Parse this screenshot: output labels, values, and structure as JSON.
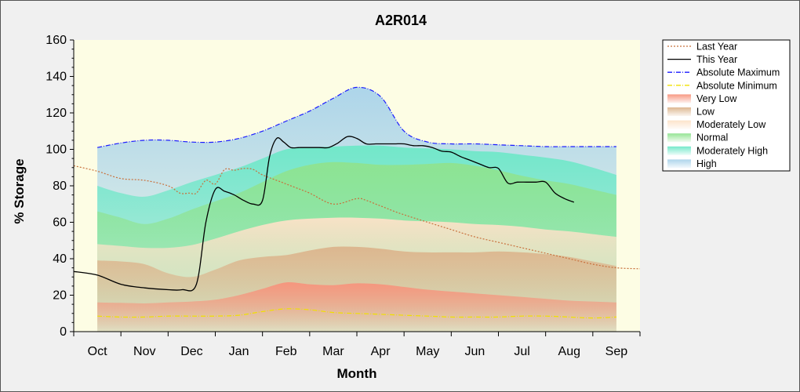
{
  "chart_data": {
    "type": "area",
    "title": "A2R014",
    "xlabel": "Month",
    "ylabel": "% Storage",
    "ylim": [
      0,
      160
    ],
    "yticks": [
      0,
      20,
      40,
      60,
      80,
      100,
      120,
      140,
      160
    ],
    "xlim": [
      0,
      12
    ],
    "categories": [
      "Oct",
      "Nov",
      "Dec",
      "Jan",
      "Feb",
      "Mar",
      "Apr",
      "May",
      "Jun",
      "Jul",
      "Aug",
      "Sep"
    ],
    "grid": false,
    "legend_position": "right",
    "bands_x": [
      0.5,
      1,
      1.5,
      2,
      2.5,
      3,
      3.5,
      4,
      4.5,
      5,
      5.5,
      6,
      6.5,
      7,
      7.5,
      8,
      8.5,
      9,
      9.5,
      10,
      10.5,
      11,
      11.5
    ],
    "bands": [
      {
        "name": "Very Low",
        "color": "#f7937c",
        "top": [
          16,
          15.8,
          15.5,
          16,
          16.5,
          17.5,
          20,
          23.5,
          27,
          26,
          25.5,
          26.5,
          26,
          24.5,
          23,
          22,
          21,
          20,
          19,
          18,
          17,
          16.5,
          16
        ]
      },
      {
        "name": "Low",
        "color": "#dcb48c",
        "top": [
          39,
          38.5,
          37,
          32,
          30,
          34,
          39,
          41,
          42,
          44.5,
          46.5,
          46.5,
          45.5,
          44,
          43.5,
          43.5,
          43.5,
          44,
          43.5,
          42.5,
          41,
          38.5,
          36
        ]
      },
      {
        "name": "Moderately Low",
        "color": "#fde2c8",
        "top": [
          48,
          47,
          46,
          46,
          47.5,
          51,
          55,
          58.5,
          61,
          62,
          62.5,
          62.5,
          62,
          61,
          60.5,
          60,
          59,
          58.5,
          57.5,
          56,
          55,
          53.5,
          52
        ]
      },
      {
        "name": "Normal",
        "color": "#8fe38f",
        "top": [
          66,
          62.5,
          59,
          62,
          67,
          71.5,
          76,
          82,
          88,
          91.5,
          93,
          92.5,
          91.5,
          91.5,
          92,
          92.5,
          91,
          88.5,
          85.5,
          83,
          81,
          78,
          75
        ]
      },
      {
        "name": "Moderately High",
        "color": "#6ee8c8",
        "top": [
          80,
          76,
          74,
          77.5,
          82,
          86,
          90,
          95,
          100,
          101,
          101.5,
          102,
          102,
          101,
          100.5,
          100,
          99,
          98.5,
          97,
          95.5,
          93.5,
          90,
          86
        ]
      },
      {
        "name": "High",
        "color": "#a9d3ea",
        "top": [
          101,
          103.5,
          105,
          105,
          104,
          104,
          106,
          110,
          115.5,
          121,
          128,
          134,
          129,
          110,
          104,
          103,
          103,
          102.5,
          102,
          101.5,
          101.5,
          101.5,
          101.5
        ]
      }
    ],
    "series": [
      {
        "name": "Last Year",
        "color": "#c8703c",
        "style": "dotted",
        "x": [
          0,
          0.5,
          1,
          1.5,
          2,
          2.25,
          2.45,
          2.6,
          2.8,
          3,
          3.2,
          3.4,
          3.6,
          3.8,
          4,
          4.4,
          4.7,
          5,
          5.5,
          6,
          6.2,
          6.4,
          6.6,
          6.9,
          7.5,
          8,
          8.5,
          9,
          9.5,
          10,
          10.5,
          11,
          11.5,
          12
        ],
        "y": [
          91,
          88,
          84,
          83,
          80,
          76,
          76,
          76,
          83,
          81,
          89,
          88.5,
          89.5,
          89,
          86,
          82,
          79,
          76,
          70,
          73,
          72,
          70,
          68,
          65,
          60,
          56,
          52,
          49,
          46,
          43,
          40,
          37,
          35,
          34.5
        ]
      },
      {
        "name": "This Year",
        "color": "#000000",
        "style": "solid",
        "x": [
          0,
          0.5,
          1,
          1.5,
          2,
          2.3,
          2.6,
          2.8,
          3,
          3.2,
          3.4,
          3.6,
          3.8,
          4,
          4.15,
          4.3,
          4.45,
          4.6,
          4.8,
          5.2,
          5.4,
          5.6,
          5.8,
          6,
          6.2,
          6.4,
          6.6,
          6.8,
          7,
          7.2,
          7.4,
          7.6,
          7.8,
          8,
          8.2,
          8.4,
          8.6,
          8.8,
          9,
          9.2,
          9.4,
          9.6,
          9.8,
          10,
          10.2,
          10.4,
          10.6
        ],
        "y": [
          33,
          31,
          26,
          24,
          23,
          23,
          26,
          60,
          78,
          77,
          75,
          72,
          70,
          72,
          96,
          106,
          104,
          101,
          101,
          101,
          101,
          103.5,
          107,
          106,
          103,
          103,
          103,
          103,
          103,
          102,
          102,
          101,
          99,
          98.5,
          96,
          94,
          92,
          90,
          89.5,
          81.5,
          82,
          82,
          82,
          82,
          76,
          73,
          71
        ]
      },
      {
        "name": "Absolute Maximum",
        "color": "#1a1aff",
        "style": "dashdot",
        "x": [
          0.5,
          1,
          1.5,
          2,
          2.5,
          3,
          3.5,
          4,
          4.5,
          5,
          5.5,
          6,
          6.5,
          7,
          7.5,
          8,
          8.5,
          9,
          9.5,
          10,
          10.5,
          11,
          11.5
        ],
        "y": [
          101,
          103.5,
          105,
          105,
          104,
          104,
          106,
          110,
          115.5,
          121,
          128,
          134,
          129,
          110,
          104,
          103,
          103,
          102.5,
          102,
          101.5,
          101.5,
          101.5,
          101.5
        ]
      },
      {
        "name": "Absolute Minimum",
        "color": "#f0e000",
        "style": "dashdot",
        "x": [
          0.5,
          1,
          1.5,
          2,
          2.5,
          3,
          3.5,
          4,
          4.5,
          5,
          5.5,
          6,
          6.5,
          7,
          7.5,
          8,
          8.5,
          9,
          9.5,
          10,
          10.5,
          11,
          11.5
        ],
        "y": [
          8.5,
          8,
          8,
          8.5,
          8.5,
          8.5,
          9,
          11,
          12.5,
          12,
          10.5,
          10,
          9.5,
          9,
          8.5,
          8,
          8,
          8,
          8.5,
          8.5,
          8,
          7.5,
          8
        ]
      }
    ],
    "legend": [
      {
        "label": "Last Year",
        "kind": "line",
        "color": "#c8703c",
        "style": "dotted"
      },
      {
        "label": "This Year",
        "kind": "line",
        "color": "#000000",
        "style": "solid"
      },
      {
        "label": "Absolute Maximum",
        "kind": "line",
        "color": "#1a1aff",
        "style": "dashdot"
      },
      {
        "label": "Absolute Minimum",
        "kind": "line",
        "color": "#f0e000",
        "style": "dashdot"
      },
      {
        "label": "Very Low",
        "kind": "band",
        "color": "#f7937c"
      },
      {
        "label": "Low",
        "kind": "band",
        "color": "#dcb48c"
      },
      {
        "label": "Moderately Low",
        "kind": "band",
        "color": "#fde2c8"
      },
      {
        "label": "Normal",
        "kind": "band",
        "color": "#8fe38f"
      },
      {
        "label": "Moderately High",
        "kind": "band",
        "color": "#6ee8c8"
      },
      {
        "label": "High",
        "kind": "band",
        "color": "#a9d3ea"
      }
    ],
    "background_color": "#fdfde4"
  }
}
